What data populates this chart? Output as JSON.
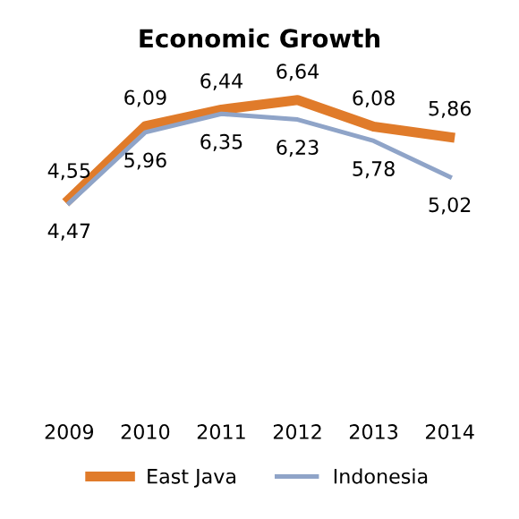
{
  "chart_data": {
    "type": "line",
    "title": "Economic Growth",
    "categories": [
      "2009",
      "2010",
      "2011",
      "2012",
      "2013",
      "2014"
    ],
    "series": [
      {
        "name": "East Java",
        "color": "#e07b2a",
        "values": [
          4.55,
          6.09,
          6.44,
          6.64,
          6.08,
          5.86
        ],
        "value_labels": [
          "4,55",
          "6,09",
          "6,44",
          "6,64",
          "6,08",
          "5,86"
        ]
      },
      {
        "name": "Indonesia",
        "color": "#8fa4c8",
        "values": [
          4.47,
          5.96,
          6.35,
          6.23,
          5.78,
          5.02
        ],
        "value_labels": [
          "4,47",
          "5,96",
          "6,35",
          "6,23",
          "5,78",
          "5,02"
        ]
      }
    ],
    "grid": false,
    "legend": "bottom",
    "marker": "none",
    "line_style": "solid"
  }
}
